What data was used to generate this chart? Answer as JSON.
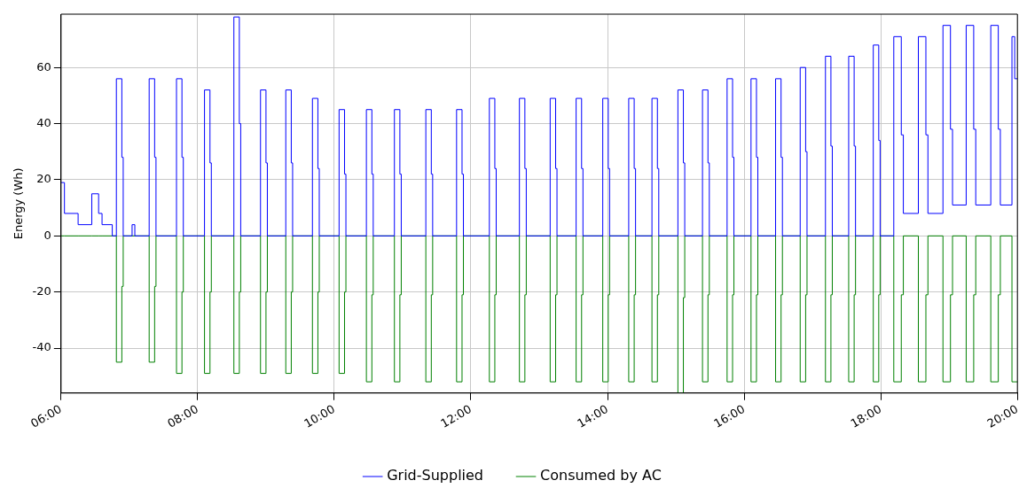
{
  "chart_data": {
    "type": "step",
    "ylabel": "Energy (Wh)",
    "x": [
      6,
      6.05,
      6.25,
      6.45,
      6.55,
      6.6,
      6.75,
      6.81,
      6.89,
      6.91,
      7.04,
      7.08,
      7.29,
      7.37,
      7.39,
      7.69,
      7.77,
      7.79,
      8.1,
      8.18,
      8.2,
      8.53,
      8.61,
      8.63,
      8.92,
      9.0,
      9.02,
      9.29,
      9.37,
      9.39,
      9.68,
      9.76,
      9.78,
      10.07,
      10.15,
      10.17,
      10.47,
      10.55,
      10.57,
      10.88,
      10.96,
      10.98,
      11.34,
      11.42,
      11.44,
      11.79,
      11.87,
      11.89,
      12.27,
      12.35,
      12.37,
      12.71,
      12.79,
      12.81,
      13.16,
      13.24,
      13.26,
      13.54,
      13.62,
      13.64,
      13.93,
      14.01,
      14.03,
      14.31,
      14.39,
      14.41,
      14.65,
      14.73,
      14.75,
      15.03,
      15.11,
      15.13,
      15.39,
      15.47,
      15.49,
      15.75,
      15.83,
      15.85,
      16.1,
      16.18,
      16.2,
      16.46,
      16.54,
      16.56,
      16.82,
      16.9,
      16.92,
      17.19,
      17.27,
      17.29,
      17.53,
      17.61,
      17.63,
      17.89,
      17.97,
      17.99,
      18.19,
      18.3,
      18.33,
      18.55,
      18.66,
      18.69,
      18.91,
      19.02,
      19.05,
      19.25,
      19.36,
      19.39,
      19.61,
      19.72,
      19.75,
      19.92,
      19.96,
      20
    ],
    "series": [
      {
        "name": "Grid-Supplied",
        "color": "#0000ff",
        "values": [
          19,
          8,
          4,
          15,
          8,
          4,
          0,
          56,
          28,
          0,
          4,
          0,
          56,
          28,
          0,
          56,
          28,
          0,
          52,
          26,
          0,
          78,
          40,
          0,
          52,
          26,
          0,
          52,
          26,
          0,
          49,
          24,
          0,
          45,
          22,
          0,
          45,
          22,
          0,
          45,
          22,
          0,
          45,
          22,
          0,
          45,
          22,
          0,
          49,
          24,
          0,
          49,
          24,
          0,
          49,
          24,
          0,
          49,
          24,
          0,
          49,
          24,
          0,
          49,
          24,
          0,
          49,
          24,
          0,
          52,
          26,
          0,
          52,
          26,
          0,
          56,
          28,
          0,
          56,
          28,
          0,
          56,
          28,
          0,
          60,
          30,
          0,
          64,
          32,
          0,
          64,
          32,
          0,
          68,
          34,
          0,
          71,
          36,
          8,
          71,
          36,
          8,
          75,
          38,
          11,
          75,
          38,
          11,
          75,
          38,
          11,
          71,
          56,
          56
        ]
      },
      {
        "name": "Consumed by AC",
        "color": "#008000",
        "values": [
          0,
          0,
          0,
          0,
          0,
          0,
          0,
          -45,
          -18,
          0,
          0,
          0,
          -45,
          -18,
          0,
          -49,
          -20,
          0,
          -49,
          -20,
          0,
          -49,
          -20,
          0,
          -49,
          -20,
          0,
          -49,
          -20,
          0,
          -49,
          -20,
          0,
          -49,
          -20,
          0,
          -52,
          -21,
          0,
          -52,
          -21,
          0,
          -52,
          -21,
          0,
          -52,
          -21,
          0,
          -52,
          -21,
          0,
          -52,
          -21,
          0,
          -52,
          -21,
          0,
          -52,
          -21,
          0,
          -52,
          -21,
          0,
          -52,
          -21,
          0,
          -52,
          -21,
          0,
          -56,
          -22,
          0,
          -52,
          -21,
          0,
          -52,
          -21,
          0,
          -52,
          -21,
          0,
          -52,
          -21,
          0,
          -52,
          -21,
          0,
          -52,
          -21,
          0,
          -52,
          -21,
          0,
          -52,
          -21,
          0,
          -52,
          -21,
          0,
          -52,
          -21,
          0,
          -52,
          -21,
          0,
          -52,
          -21,
          0,
          -52,
          -21,
          0,
          -52,
          -52,
          -52
        ]
      }
    ],
    "xlim": [
      6,
      20
    ],
    "xticks": [
      {
        "value": 6,
        "label": "06:00"
      },
      {
        "value": 8,
        "label": "08:00"
      },
      {
        "value": 10,
        "label": "10:00"
      },
      {
        "value": 12,
        "label": "12:00"
      },
      {
        "value": 14,
        "label": "14:00"
      },
      {
        "value": 16,
        "label": "16:00"
      },
      {
        "value": 18,
        "label": "18:00"
      },
      {
        "value": 20,
        "label": "20:00"
      }
    ],
    "ylim": [
      -56,
      79
    ],
    "yticks": [
      -40,
      -20,
      0,
      20,
      40,
      60
    ],
    "grid": true,
    "legend": "bottom",
    "marker": "none",
    "line_style": "solid"
  }
}
